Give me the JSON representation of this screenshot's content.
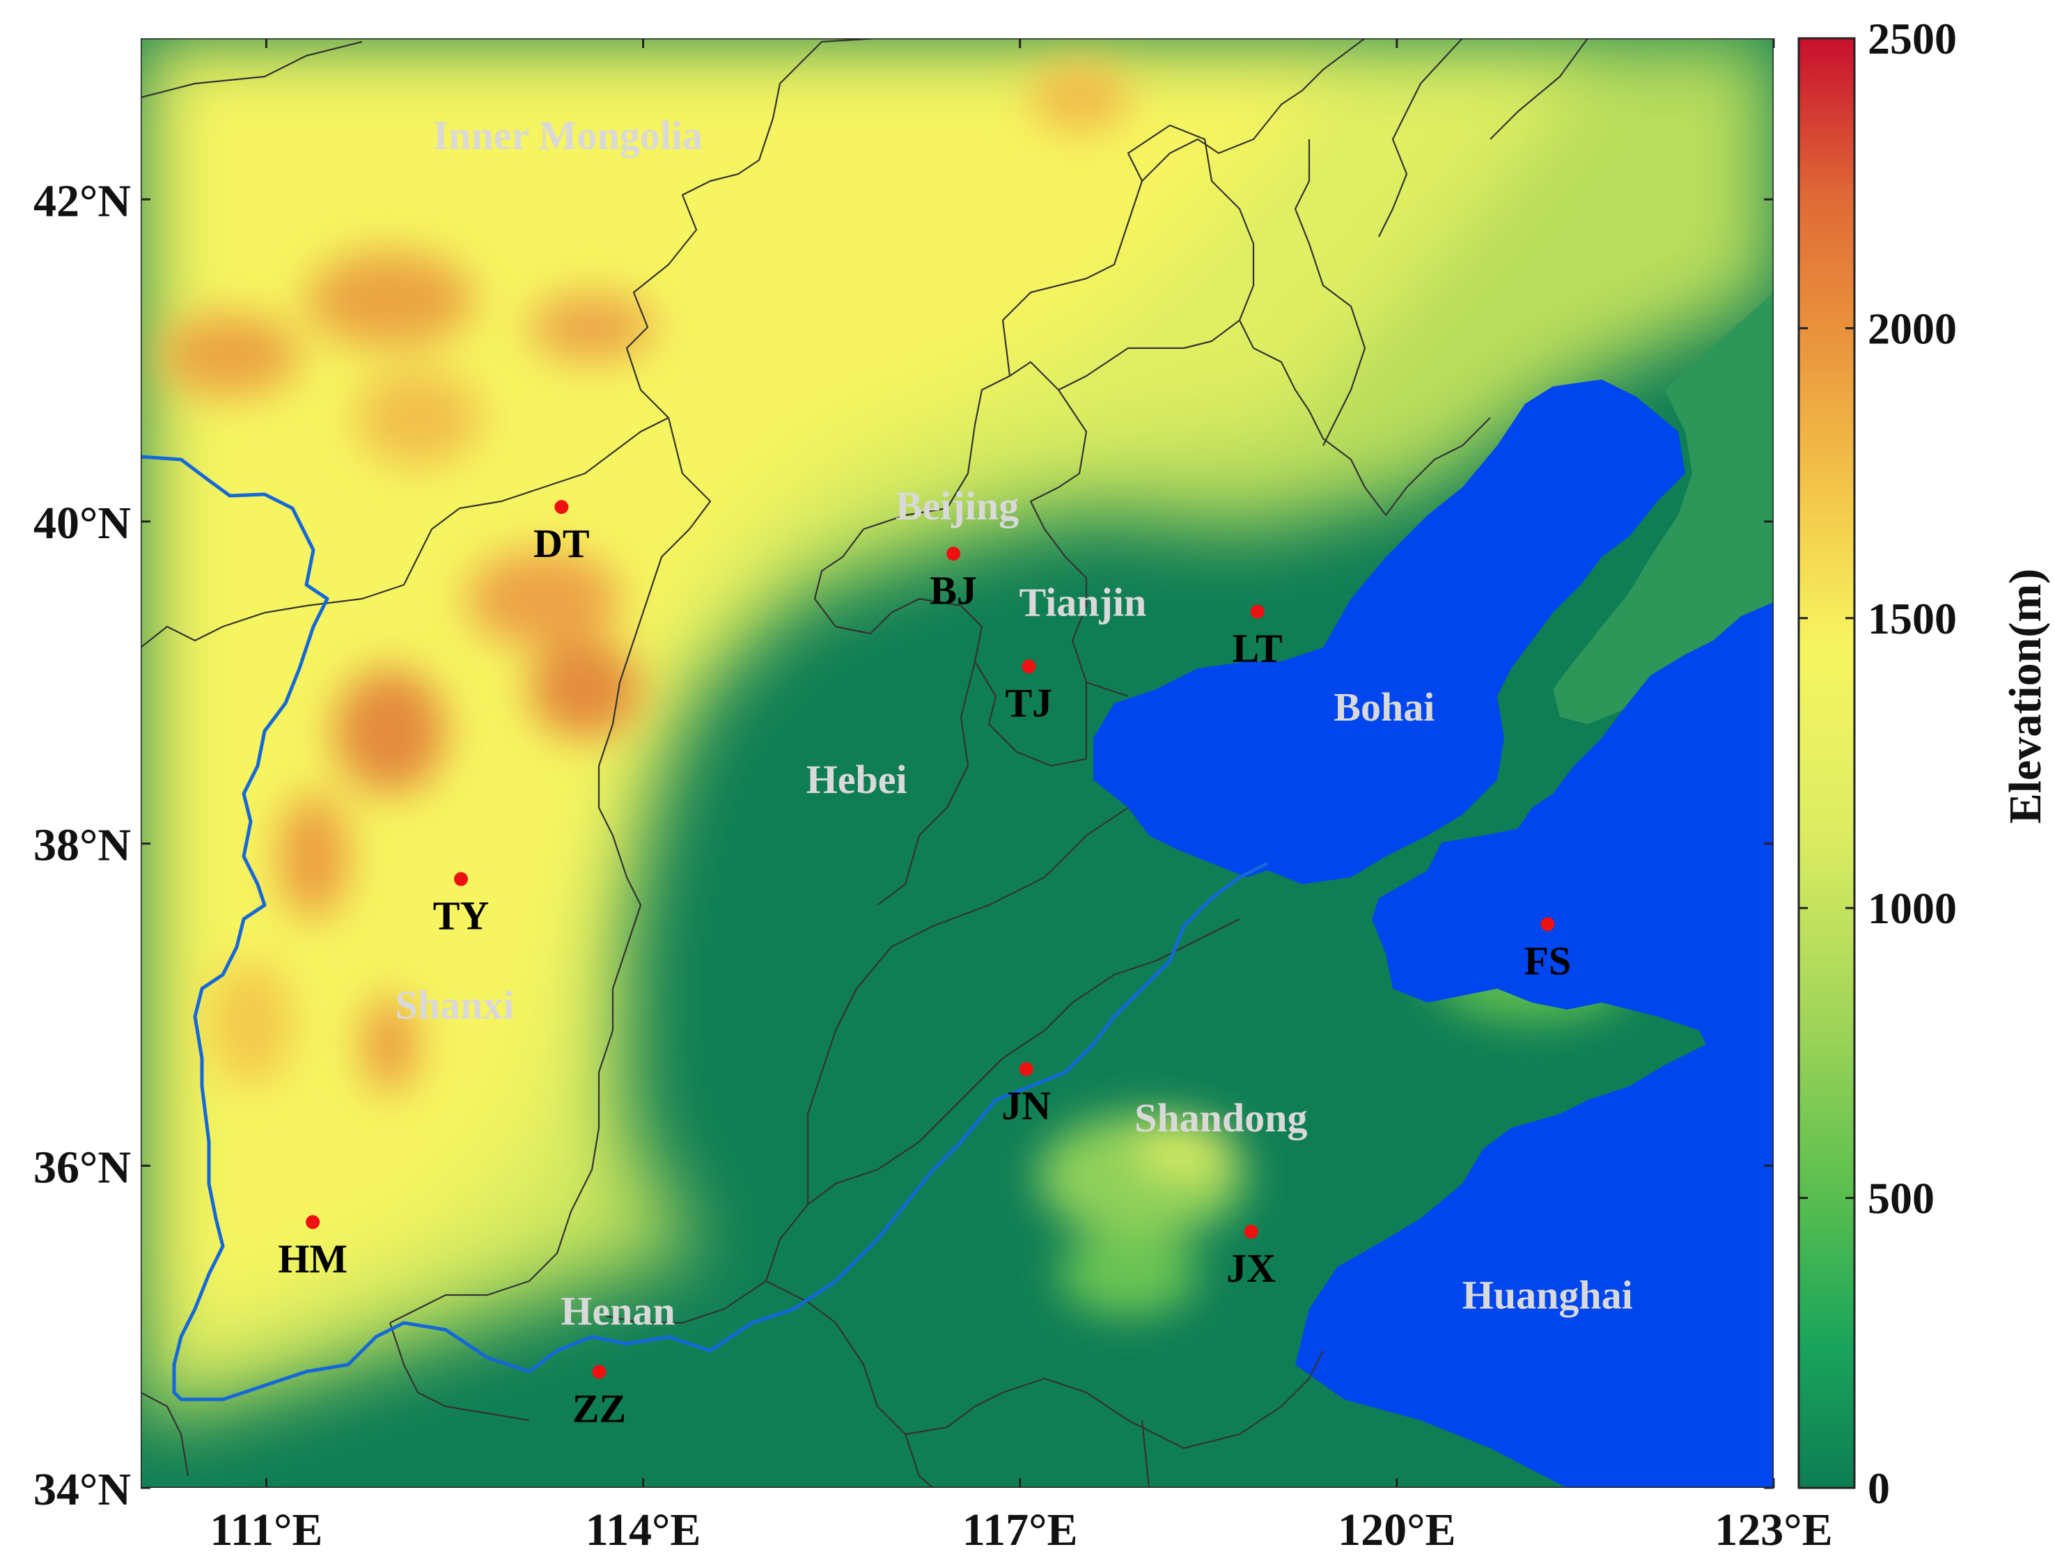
{
  "map": {
    "lon_ticks": [
      "111°E",
      "114°E",
      "117°E",
      "120°E",
      "123°E"
    ],
    "lat_ticks": [
      "34°N",
      "36°N",
      "38°N",
      "40°N",
      "42°N"
    ],
    "regions": [
      {
        "name": "Inner Mongolia",
        "lon": 113.4,
        "lat": 42.4
      },
      {
        "name": "Beijing",
        "lon": 116.5,
        "lat": 40.1
      },
      {
        "name": "Tianjin",
        "lon": 117.5,
        "lat": 39.5
      },
      {
        "name": "Hebei",
        "lon": 115.7,
        "lat": 38.4
      },
      {
        "name": "Bohai",
        "lon": 119.9,
        "lat": 38.85
      },
      {
        "name": "Shanxi",
        "lon": 112.5,
        "lat": 37.0
      },
      {
        "name": "Shandong",
        "lon": 118.6,
        "lat": 36.3
      },
      {
        "name": "Henan",
        "lon": 113.8,
        "lat": 35.1
      },
      {
        "name": "Huanghai",
        "lon": 121.2,
        "lat": 35.2
      }
    ],
    "stations": [
      {
        "code": "DT",
        "lon": 113.35,
        "lat": 40.09
      },
      {
        "code": "BJ",
        "lon": 116.47,
        "lat": 39.8
      },
      {
        "code": "TJ",
        "lon": 117.07,
        "lat": 39.1
      },
      {
        "code": "LT",
        "lon": 118.89,
        "lat": 39.44
      },
      {
        "code": "TY",
        "lon": 112.55,
        "lat": 37.78
      },
      {
        "code": "FS",
        "lon": 121.2,
        "lat": 37.5
      },
      {
        "code": "JN",
        "lon": 117.05,
        "lat": 36.6
      },
      {
        "code": "JX",
        "lon": 118.84,
        "lat": 35.59
      },
      {
        "code": "HM",
        "lon": 111.37,
        "lat": 35.65
      },
      {
        "code": "ZZ",
        "lon": 113.65,
        "lat": 34.72
      }
    ],
    "colors": {
      "sea": "#0046ee",
      "river": "#1568d8",
      "station_marker": "#ee1111",
      "boundary": "#333333"
    }
  },
  "colorbar": {
    "title": "Elevation(m)",
    "ticks": [
      "0",
      "500",
      "1000",
      "1500",
      "2000",
      "2500"
    ],
    "range": [
      0,
      2500
    ],
    "stops": [
      "#0e7d54",
      "#1aa55b",
      "#58be4f",
      "#9fd458",
      "#dcec62",
      "#f6f561",
      "#f4c94b",
      "#eb9a3e",
      "#e06a36",
      "#c8102e"
    ]
  }
}
